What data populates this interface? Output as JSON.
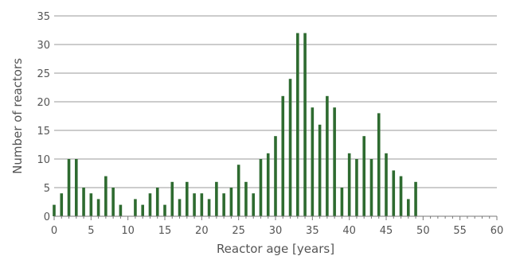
{
  "chart_data": {
    "type": "bar",
    "title": "",
    "xlabel": "Reactor age [years]",
    "ylabel": "Number of reactors",
    "x": [
      0,
      1,
      2,
      3,
      4,
      5,
      6,
      7,
      8,
      9,
      10,
      11,
      12,
      13,
      14,
      15,
      16,
      17,
      18,
      19,
      20,
      21,
      22,
      23,
      24,
      25,
      26,
      27,
      28,
      29,
      30,
      31,
      32,
      33,
      34,
      35,
      36,
      37,
      38,
      39,
      40,
      41,
      42,
      43,
      44,
      45,
      46,
      47,
      48,
      49
    ],
    "values": [
      2,
      4,
      10,
      10,
      5,
      4,
      3,
      7,
      5,
      2,
      0,
      3,
      2,
      4,
      5,
      2,
      6,
      3,
      6,
      4,
      4,
      3,
      6,
      4,
      5,
      9,
      6,
      4,
      10,
      11,
      14,
      21,
      24,
      32,
      32,
      19,
      16,
      21,
      19,
      5,
      11,
      10,
      14,
      10,
      18,
      11,
      8,
      7,
      3,
      6
    ],
    "xlim": [
      0,
      60
    ],
    "ylim": [
      0,
      35
    ],
    "xticks": [
      "0",
      "5",
      "10",
      "15",
      "20",
      "25",
      "30",
      "35",
      "40",
      "45",
      "50",
      "55",
      "60"
    ],
    "yticks": [
      "0",
      "5",
      "10",
      "15",
      "20",
      "25",
      "30",
      "35"
    ],
    "grid": true,
    "bar_color": "#2e6b30",
    "grid_color": "#9a9a9a"
  }
}
